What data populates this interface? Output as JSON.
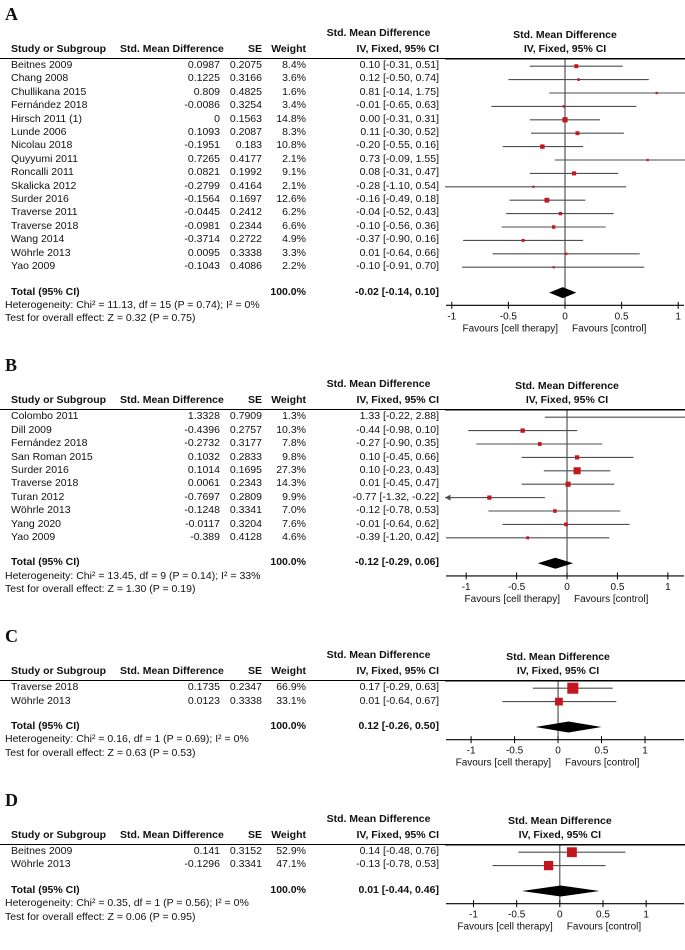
{
  "figure": {
    "square_color": "#C4161C",
    "diamond_color": "#000000",
    "ci_line_color": "#4f4f4f",
    "columns": {
      "study": "Study or Subgroup",
      "smd": "Std. Mean Difference",
      "se": "SE",
      "weight": "Weight",
      "ci": "IV, Fixed, 95% CI"
    },
    "axis_labels": {
      "left": "Favours [cell therapy]",
      "right": "Favours [control]"
    },
    "total_label": "Total (95% CI)"
  },
  "chart_data": {
    "type": "forest",
    "effect_measure": "Std. Mean Difference (IV, Fixed, 95% CI)",
    "panels": [
      {
        "label": "A",
        "studies": [
          {
            "study": "Beitnes 2009",
            "smd": "0.0987",
            "se": "0.2075",
            "weight": "8.4%",
            "ci_text": "0.10 [-0.31, 0.51]",
            "est": 0.1,
            "lo": -0.31,
            "hi": 0.51
          },
          {
            "study": "Chang 2008",
            "smd": "0.1225",
            "se": "0.3166",
            "weight": "3.6%",
            "ci_text": "0.12 [-0.50, 0.74]",
            "est": 0.12,
            "lo": -0.5,
            "hi": 0.74
          },
          {
            "study": "Chullikana 2015",
            "smd": "0.809",
            "se": "0.4825",
            "weight": "1.6%",
            "ci_text": "0.81 [-0.14, 1.75]",
            "est": 0.81,
            "lo": -0.14,
            "hi": 1.75
          },
          {
            "study": "Fernández 2018",
            "smd": "-0.0086",
            "se": "0.3254",
            "weight": "3.4%",
            "ci_text": "-0.01 [-0.65, 0.63]",
            "est": -0.01,
            "lo": -0.65,
            "hi": 0.63
          },
          {
            "study": "Hirsch 2011 (1)",
            "smd": "0",
            "se": "0.1563",
            "weight": "14.8%",
            "ci_text": "0.00 [-0.31, 0.31]",
            "est": 0.0,
            "lo": -0.31,
            "hi": 0.31
          },
          {
            "study": "Lunde 2006",
            "smd": "0.1093",
            "se": "0.2087",
            "weight": "8.3%",
            "ci_text": "0.11 [-0.30, 0.52]",
            "est": 0.11,
            "lo": -0.3,
            "hi": 0.52
          },
          {
            "study": "Nicolau 2018",
            "smd": "-0.1951",
            "se": "0.183",
            "weight": "10.8%",
            "ci_text": "-0.20 [-0.55, 0.16]",
            "est": -0.2,
            "lo": -0.55,
            "hi": 0.16
          },
          {
            "study": "Quyyumi 2011",
            "smd": "0.7265",
            "se": "0.4177",
            "weight": "2.1%",
            "ci_text": "0.73 [-0.09, 1.55]",
            "est": 0.73,
            "lo": -0.09,
            "hi": 1.55
          },
          {
            "study": "Roncalli 2011",
            "smd": "0.0821",
            "se": "0.1992",
            "weight": "9.1%",
            "ci_text": "0.08 [-0.31, 0.47]",
            "est": 0.08,
            "lo": -0.31,
            "hi": 0.47
          },
          {
            "study": "Skalicka 2012",
            "smd": "-0.2799",
            "se": "0.4164",
            "weight": "2.1%",
            "ci_text": "-0.28 [-1.10, 0.54]",
            "est": -0.28,
            "lo": -1.1,
            "hi": 0.54
          },
          {
            "study": "Surder 2016",
            "smd": "-0.1564",
            "se": "0.1697",
            "weight": "12.6%",
            "ci_text": "-0.16 [-0.49, 0.18]",
            "est": -0.16,
            "lo": -0.49,
            "hi": 0.18
          },
          {
            "study": "Traverse 2011",
            "smd": "-0.0445",
            "se": "0.2412",
            "weight": "6.2%",
            "ci_text": "-0.04 [-0.52, 0.43]",
            "est": -0.04,
            "lo": -0.52,
            "hi": 0.43
          },
          {
            "study": "Traverse 2018",
            "smd": "-0.0981",
            "se": "0.2344",
            "weight": "6.6%",
            "ci_text": "-0.10 [-0.56, 0.36]",
            "est": -0.1,
            "lo": -0.56,
            "hi": 0.36
          },
          {
            "study": "Wang 2014",
            "smd": "-0.3714",
            "se": "0.2722",
            "weight": "4.9%",
            "ci_text": "-0.37 [-0.90, 0.16]",
            "est": -0.37,
            "lo": -0.9,
            "hi": 0.16
          },
          {
            "study": "Wöhrle 2013",
            "smd": "0.0095",
            "se": "0.3338",
            "weight": "3.3%",
            "ci_text": "0.01 [-0.64, 0.66]",
            "est": 0.01,
            "lo": -0.64,
            "hi": 0.66
          },
          {
            "study": "Yao 2009",
            "smd": "-0.1043",
            "se": "0.4086",
            "weight": "2.2%",
            "ci_text": "-0.10 [-0.91, 0.70]",
            "est": -0.1,
            "lo": -0.91,
            "hi": 0.7
          }
        ],
        "total": {
          "weight": "100.0%",
          "ci_text": "-0.02 [-0.14, 0.10]",
          "est": -0.02,
          "lo": -0.14,
          "hi": 0.1
        },
        "heterogeneity": "Heterogeneity: Chi² = 11.13, df = 15 (P = 0.74); I² = 0%",
        "overall": "Test for overall effect: Z = 0.32 (P = 0.75)",
        "axis": {
          "xmin": -1.06,
          "xmax": 1.06,
          "ticks": [
            -1,
            -0.5,
            0,
            0.5,
            1
          ]
        }
      },
      {
        "label": "B",
        "studies": [
          {
            "study": "Colombo 2011",
            "smd": "1.3328",
            "se": "0.7909",
            "weight": "1.3%",
            "ci_text": "1.33 [-0.22, 2.88]",
            "est": 1.33,
            "lo": -0.22,
            "hi": 2.88
          },
          {
            "study": "Dill 2009",
            "smd": "-0.4396",
            "se": "0.2757",
            "weight": "10.3%",
            "ci_text": "-0.44 [-0.98, 0.10]",
            "est": -0.44,
            "lo": -0.98,
            "hi": 0.1
          },
          {
            "study": "Fernández 2018",
            "smd": "-0.2732",
            "se": "0.3177",
            "weight": "7.8%",
            "ci_text": "-0.27 [-0.90, 0.35]",
            "est": -0.27,
            "lo": -0.9,
            "hi": 0.35
          },
          {
            "study": "San Roman 2015",
            "smd": "0.1032",
            "se": "0.2833",
            "weight": "9.8%",
            "ci_text": "0.10 [-0.45, 0.66]",
            "est": 0.1,
            "lo": -0.45,
            "hi": 0.66
          },
          {
            "study": "Surder 2016",
            "smd": "0.1014",
            "se": "0.1695",
            "weight": "27.3%",
            "ci_text": "0.10 [-0.23, 0.43]",
            "est": 0.1,
            "lo": -0.23,
            "hi": 0.43
          },
          {
            "study": "Traverse 2018",
            "smd": "0.0061",
            "se": "0.2343",
            "weight": "14.3%",
            "ci_text": "0.01 [-0.45, 0.47]",
            "est": 0.01,
            "lo": -0.45,
            "hi": 0.47
          },
          {
            "study": "Turan 2012",
            "smd": "-0.7697",
            "se": "0.2809",
            "weight": "9.9%",
            "ci_text": "-0.77 [-1.32, -0.22]",
            "est": -0.77,
            "lo": -1.32,
            "hi": -0.22,
            "arrow_left": true
          },
          {
            "study": "Wöhrle 2013",
            "smd": "-0.1248",
            "se": "0.3341",
            "weight": "7.0%",
            "ci_text": "-0.12 [-0.78, 0.53]",
            "est": -0.12,
            "lo": -0.78,
            "hi": 0.53
          },
          {
            "study": "Yang 2020",
            "smd": "-0.0117",
            "se": "0.3204",
            "weight": "7.6%",
            "ci_text": "-0.01 [-0.64, 0.62]",
            "est": -0.01,
            "lo": -0.64,
            "hi": 0.62
          },
          {
            "study": "Yao 2009",
            "smd": "-0.389",
            "se": "0.4128",
            "weight": "4.6%",
            "ci_text": "-0.39 [-1.20, 0.42]",
            "est": -0.39,
            "lo": -1.2,
            "hi": 0.42
          }
        ],
        "total": {
          "weight": "100.0%",
          "ci_text": "-0.12 [-0.29, 0.06]",
          "est": -0.12,
          "lo": -0.29,
          "hi": 0.06
        },
        "heterogeneity": "Heterogeneity: Chi² = 13.45, df = 9 (P = 0.14); I² = 33%",
        "overall": "Test for overall effect: Z = 1.30 (P = 0.19)",
        "axis": {
          "xmin": -1.21,
          "xmax": 1.17,
          "ticks": [
            -1,
            -0.5,
            0,
            0.5,
            1
          ]
        }
      },
      {
        "label": "C",
        "studies": [
          {
            "study": "Traverse 2018",
            "smd": "0.1735",
            "se": "0.2347",
            "weight": "66.9%",
            "ci_text": "0.17 [-0.29, 0.63]",
            "est": 0.17,
            "lo": -0.29,
            "hi": 0.63
          },
          {
            "study": "Wöhrle 2013",
            "smd": "0.0123",
            "se": "0.3338",
            "weight": "33.1%",
            "ci_text": "0.01 [-0.64, 0.67]",
            "est": 0.01,
            "lo": -0.64,
            "hi": 0.67
          }
        ],
        "total": {
          "weight": "100.0%",
          "ci_text": "0.12 [-0.26, 0.50]",
          "est": 0.12,
          "lo": -0.26,
          "hi": 0.5
        },
        "heterogeneity": "Heterogeneity: Chi² = 0.16, df = 1 (P = 0.69); I² = 0%",
        "overall": "Test for overall effect: Z = 0.63 (P = 0.53)",
        "axis": {
          "xmin": -1.3,
          "xmax": 1.46,
          "ticks": [
            -1,
            -0.5,
            0,
            0.5,
            1
          ]
        }
      },
      {
        "label": "D",
        "studies": [
          {
            "study": "Beitnes 2009",
            "smd": "0.141",
            "se": "0.3152",
            "weight": "52.9%",
            "ci_text": "0.14 [-0.48, 0.76]",
            "est": 0.14,
            "lo": -0.48,
            "hi": 0.76
          },
          {
            "study": "Wöhrle 2013",
            "smd": "-0.1296",
            "se": "0.3341",
            "weight": "47.1%",
            "ci_text": "-0.13 [-0.78, 0.53]",
            "est": -0.13,
            "lo": -0.78,
            "hi": 0.53
          }
        ],
        "total": {
          "weight": "100.0%",
          "ci_text": "0.01 [-0.44, 0.46]",
          "est": 0.01,
          "lo": -0.44,
          "hi": 0.46
        },
        "heterogeneity": "Heterogeneity: Chi² = 0.35, df = 1 (P = 0.56); I² = 0%",
        "overall": "Test for overall effect: Z = 0.06 (P = 0.95)",
        "axis": {
          "xmin": -1.33,
          "xmax": 1.45,
          "ticks": [
            -1,
            -0.5,
            0,
            0.5,
            1
          ]
        }
      }
    ]
  }
}
